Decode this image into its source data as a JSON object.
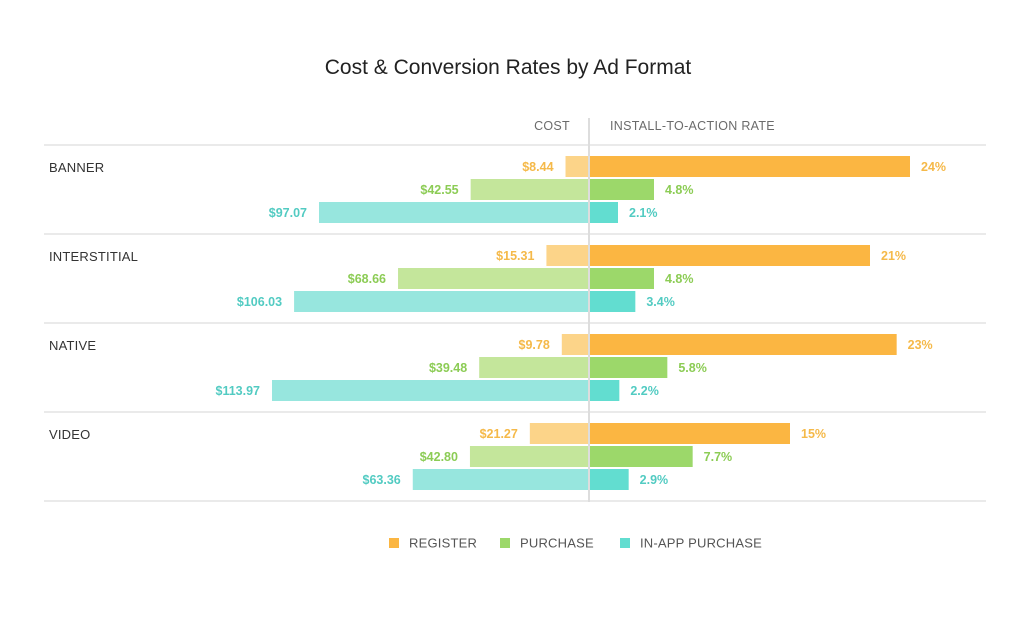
{
  "chart_data": {
    "type": "bar",
    "title": "Cost & Conversion Rates by Ad Format",
    "cost_header": "COST",
    "rate_header": "INSTALL-TO-ACTION RATE",
    "categories": [
      "BANNER",
      "INTERSTITIAL",
      "NATIVE",
      "VIDEO"
    ],
    "series": [
      {
        "name": "REGISTER",
        "color": "#fbb642",
        "cost_color": "#fcd489",
        "label_color": "#f5b949",
        "cost": [
          8.44,
          15.31,
          9.78,
          21.27
        ],
        "cost_labels": [
          "$8.44",
          "$15.31",
          "$9.78",
          "$21.27"
        ],
        "rate": [
          24,
          21,
          23,
          15
        ],
        "rate_labels": [
          "24%",
          "21%",
          "23%",
          "15%"
        ]
      },
      {
        "name": "PURCHASE",
        "color": "#9cd86a",
        "cost_color": "#c4e69b",
        "label_color": "#8ccc55",
        "cost": [
          42.55,
          68.66,
          39.48,
          42.8
        ],
        "cost_labels": [
          "$42.55",
          "$68.66",
          "$39.48",
          "$42.80"
        ],
        "rate": [
          4.8,
          4.8,
          5.8,
          7.7
        ],
        "rate_labels": [
          "4.8%",
          "4.8%",
          "5.8%",
          "7.7%"
        ]
      },
      {
        "name": "IN-APP PURCHASE",
        "color": "#62ddd0",
        "cost_color": "#97e6de",
        "label_color": "#52cbc2",
        "cost": [
          97.07,
          106.03,
          113.97,
          63.36
        ],
        "cost_labels": [
          "$97.07",
          "$106.03",
          "$113.97",
          "$63.36"
        ],
        "rate": [
          2.1,
          3.4,
          2.2,
          2.9
        ],
        "rate_labels": [
          "2.1%",
          "3.4%",
          "2.2%",
          "2.9%"
        ]
      }
    ],
    "cost_max": 113.97,
    "rate_max": 24,
    "legend_position": "bottom-center",
    "grid": false
  }
}
